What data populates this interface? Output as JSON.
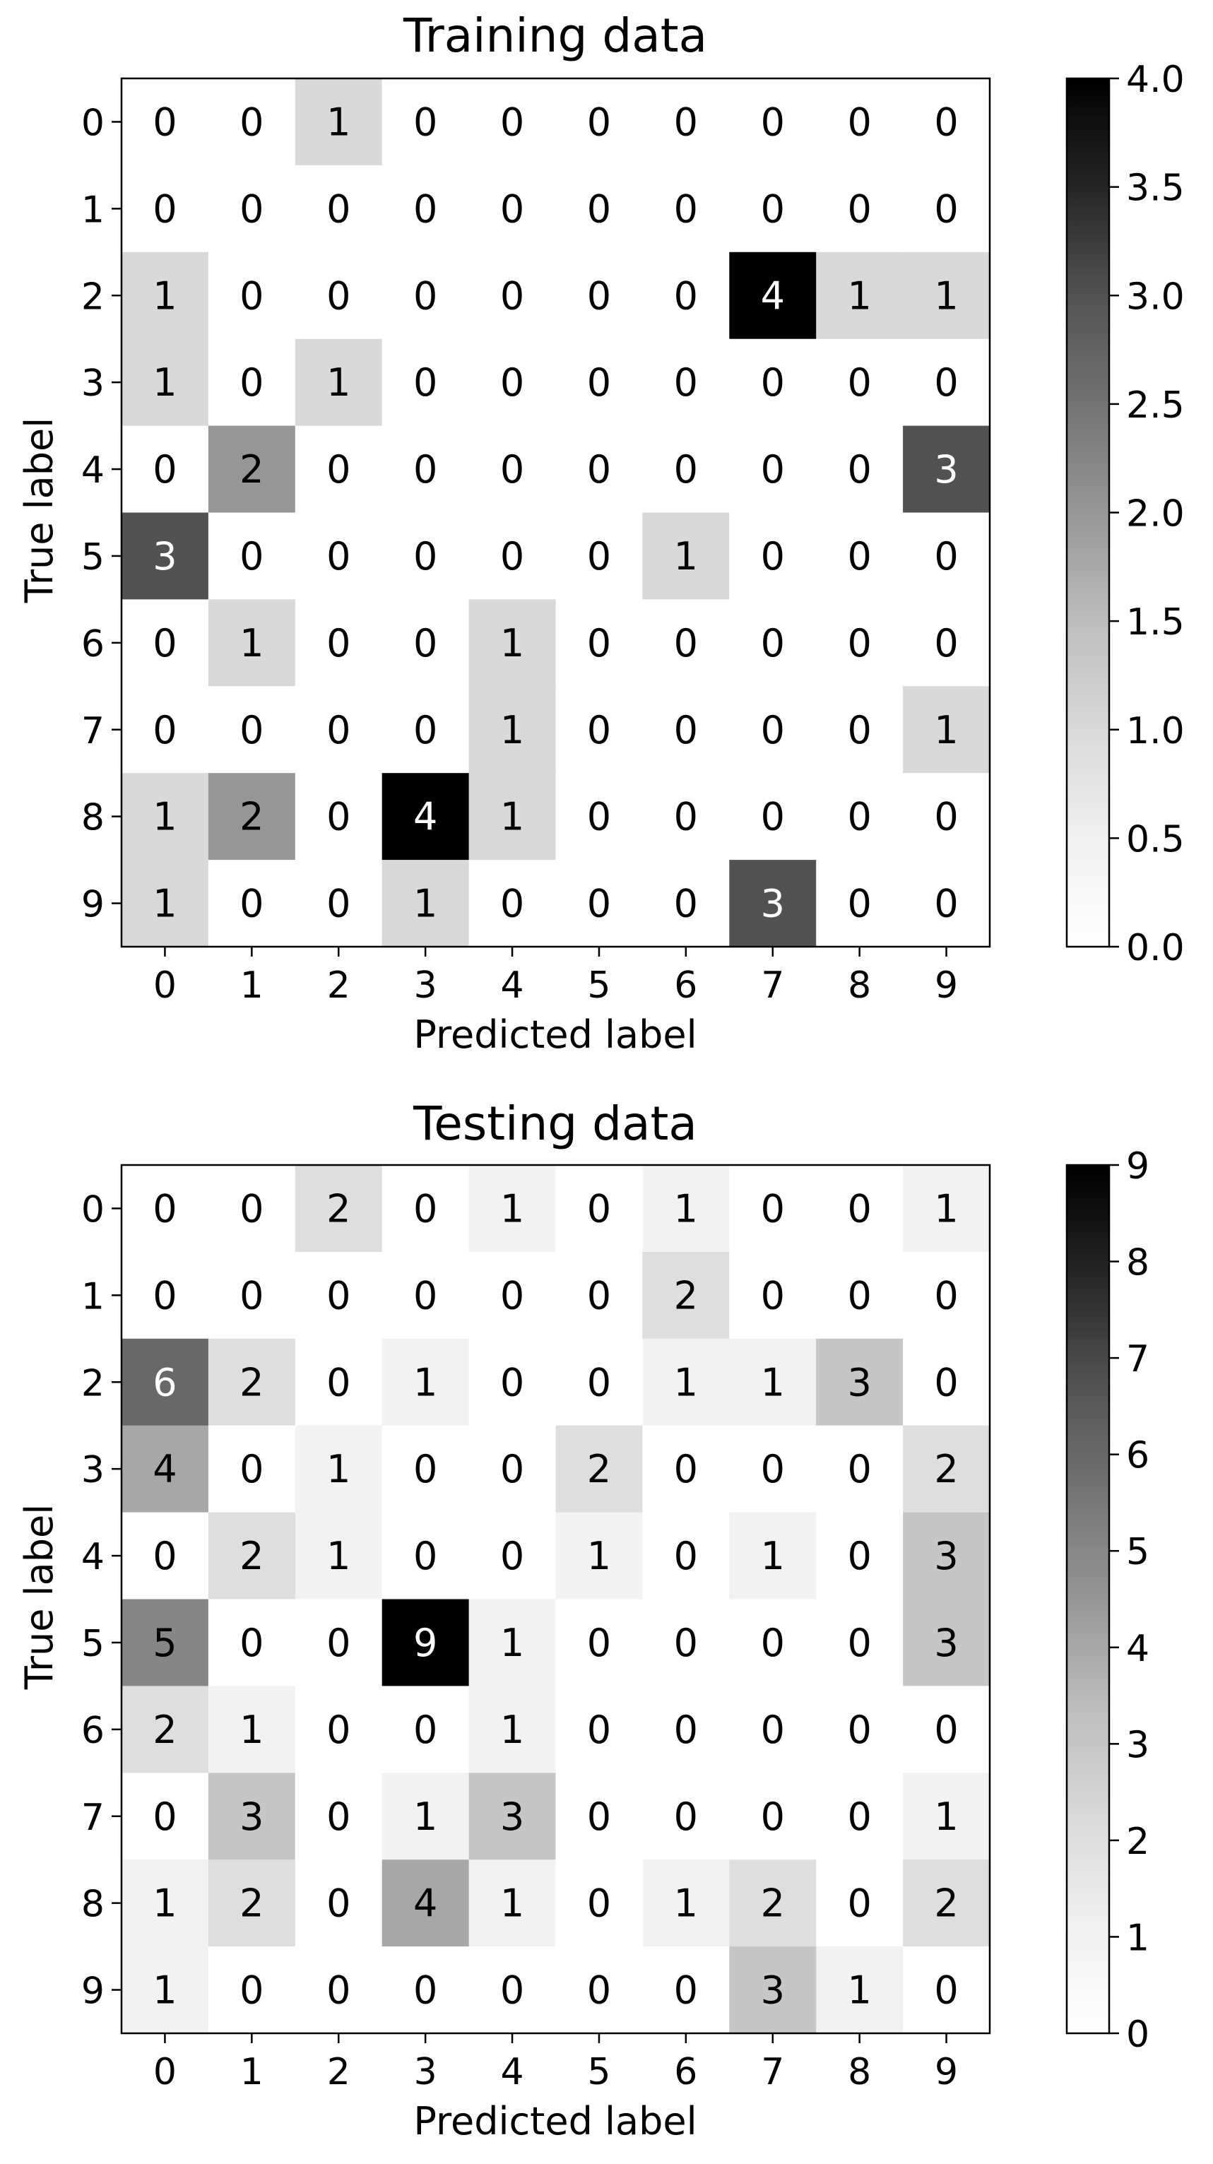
{
  "chart_data": [
    {
      "type": "heatmap",
      "title": "Training data",
      "xlabel": "Predicted label",
      "ylabel": "True label",
      "x_categories": [
        "0",
        "1",
        "2",
        "3",
        "4",
        "5",
        "6",
        "7",
        "8",
        "9"
      ],
      "y_categories": [
        "0",
        "1",
        "2",
        "3",
        "4",
        "5",
        "6",
        "7",
        "8",
        "9"
      ],
      "values": [
        [
          0,
          0,
          1,
          0,
          0,
          0,
          0,
          0,
          0,
          0
        ],
        [
          0,
          0,
          0,
          0,
          0,
          0,
          0,
          0,
          0,
          0
        ],
        [
          1,
          0,
          0,
          0,
          0,
          0,
          0,
          4,
          1,
          1
        ],
        [
          1,
          0,
          1,
          0,
          0,
          0,
          0,
          0,
          0,
          0
        ],
        [
          0,
          2,
          0,
          0,
          0,
          0,
          0,
          0,
          0,
          3
        ],
        [
          3,
          0,
          0,
          0,
          0,
          0,
          1,
          0,
          0,
          0
        ],
        [
          0,
          1,
          0,
          0,
          1,
          0,
          0,
          0,
          0,
          0
        ],
        [
          0,
          0,
          0,
          0,
          1,
          0,
          0,
          0,
          0,
          1
        ],
        [
          1,
          2,
          0,
          4,
          1,
          0,
          0,
          0,
          0,
          0
        ],
        [
          1,
          0,
          0,
          1,
          0,
          0,
          0,
          3,
          0,
          0
        ]
      ],
      "colorscale": "Greys",
      "color_range": [
        0,
        4
      ],
      "colorbar_ticks": [
        "0.0",
        "0.5",
        "1.0",
        "1.5",
        "2.0",
        "2.5",
        "3.0",
        "3.5",
        "4.0"
      ],
      "grid": false
    },
    {
      "type": "heatmap",
      "title": "Testing data",
      "xlabel": "Predicted label",
      "ylabel": "True label",
      "x_categories": [
        "0",
        "1",
        "2",
        "3",
        "4",
        "5",
        "6",
        "7",
        "8",
        "9"
      ],
      "y_categories": [
        "0",
        "1",
        "2",
        "3",
        "4",
        "5",
        "6",
        "7",
        "8",
        "9"
      ],
      "values": [
        [
          0,
          0,
          2,
          0,
          1,
          0,
          1,
          0,
          0,
          1
        ],
        [
          0,
          0,
          0,
          0,
          0,
          0,
          2,
          0,
          0,
          0
        ],
        [
          6,
          2,
          0,
          1,
          0,
          0,
          1,
          1,
          3,
          0
        ],
        [
          4,
          0,
          1,
          0,
          0,
          2,
          0,
          0,
          0,
          2
        ],
        [
          0,
          2,
          1,
          0,
          0,
          1,
          0,
          1,
          0,
          3
        ],
        [
          5,
          0,
          0,
          9,
          1,
          0,
          0,
          0,
          0,
          3
        ],
        [
          2,
          1,
          0,
          0,
          1,
          0,
          0,
          0,
          0,
          0
        ],
        [
          0,
          3,
          0,
          1,
          3,
          0,
          0,
          0,
          0,
          1
        ],
        [
          1,
          2,
          0,
          4,
          1,
          0,
          1,
          2,
          0,
          2
        ],
        [
          1,
          0,
          0,
          0,
          0,
          0,
          0,
          3,
          1,
          0
        ]
      ],
      "colorscale": "Greys",
      "color_range": [
        0,
        9
      ],
      "colorbar_ticks": [
        "0",
        "1",
        "2",
        "3",
        "4",
        "5",
        "6",
        "7",
        "8",
        "9"
      ],
      "grid": false
    }
  ]
}
